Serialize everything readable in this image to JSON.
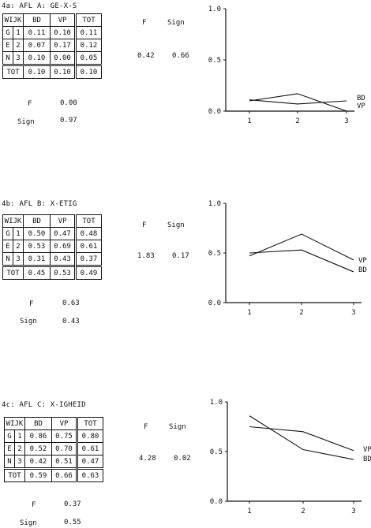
{
  "panels": [
    {
      "title": "4a: AFL A: GE-X-S",
      "table": {
        "corner": "WIJK",
        "col_headers": [
          "BD",
          "VP",
          "TOT"
        ],
        "row_group": [
          "G",
          "E",
          "N"
        ],
        "rows": [
          {
            "id": "1",
            "values": [
              "0.11",
              "0.10",
              "0.11"
            ]
          },
          {
            "id": "2",
            "values": [
              "0.07",
              "0.17",
              "0.12"
            ]
          },
          {
            "id": "3",
            "values": [
              "0.10",
              "0.00",
              "0.05"
            ]
          }
        ],
        "total": {
          "label": "TOT",
          "values": [
            "0.10",
            "0.10",
            "0.10"
          ]
        }
      },
      "f_label": "F",
      "f_value": "0.42",
      "sign_label": "Sign",
      "sign_value": "0.66",
      "bottom_f_label": "F",
      "bottom_f_value": "0.00",
      "bottom_sign_label": "Sign",
      "bottom_sign_value": "0.97"
    },
    {
      "title": "4b: AFL B: X-ETIG",
      "table": {
        "corner": "WIJK",
        "col_headers": [
          "BD",
          "VP",
          "TOT"
        ],
        "row_group": [
          "G",
          "E",
          "N"
        ],
        "rows": [
          {
            "id": "1",
            "values": [
              "0.50",
              "0.47",
              "0.48"
            ]
          },
          {
            "id": "2",
            "values": [
              "0.53",
              "0.69",
              "0.61"
            ]
          },
          {
            "id": "3",
            "values": [
              "0.31",
              "0.43",
              "0.37"
            ]
          }
        ],
        "total": {
          "label": "TOT",
          "values": [
            "0.45",
            "0.53",
            "0.49"
          ]
        }
      },
      "f_label": "F",
      "f_value": "1.83",
      "sign_label": "Sign",
      "sign_value": "0.17",
      "bottom_f_label": "F",
      "bottom_f_value": "0.63",
      "bottom_sign_label": "Sign",
      "bottom_sign_value": "0.43"
    },
    {
      "title": "4c: AFL C: X-IGHEID",
      "table": {
        "corner": "WIJK",
        "col_headers": [
          "BD",
          "VP",
          "TOT"
        ],
        "row_group": [
          "G",
          "E",
          "N"
        ],
        "rows": [
          {
            "id": "1",
            "values": [
              "0.86",
              "0.75",
              "0.80"
            ]
          },
          {
            "id": "2",
            "values": [
              "0.52",
              "0.70",
              "0.61"
            ]
          },
          {
            "id": "3",
            "values": [
              "0.42",
              "0.51",
              "0.47"
            ]
          }
        ],
        "total": {
          "label": "TOT",
          "values": [
            "0.59",
            "0.66",
            "0.63"
          ]
        }
      },
      "f_label": "F",
      "f_value": "4.28",
      "sign_label": "Sign",
      "sign_value": "0.02",
      "bottom_f_label": "F",
      "bottom_f_value": "0.37",
      "bottom_sign_label": "Sign",
      "bottom_sign_value": "0.55"
    }
  ],
  "chart_data": [
    {
      "type": "line",
      "x": [
        1,
        2,
        3
      ],
      "ylim": [
        0.0,
        1.0
      ],
      "yticks": [
        "1.0",
        "0.5",
        "0.0"
      ],
      "xticks": [
        "1",
        "2",
        "3"
      ],
      "grid": false,
      "series": [
        {
          "name": "BD",
          "values": [
            0.11,
            0.07,
            0.1
          ]
        },
        {
          "name": "VP",
          "values": [
            0.1,
            0.17,
            0.0
          ]
        }
      ]
    },
    {
      "type": "line",
      "x": [
        1,
        2,
        3
      ],
      "ylim": [
        0.0,
        1.0
      ],
      "yticks": [
        "1.0",
        "0.5",
        "0.0"
      ],
      "xticks": [
        "1",
        "2",
        "3"
      ],
      "grid": false,
      "series": [
        {
          "name": "BD",
          "values": [
            0.5,
            0.53,
            0.31
          ]
        },
        {
          "name": "VP",
          "values": [
            0.47,
            0.69,
            0.43
          ]
        }
      ]
    },
    {
      "type": "line",
      "x": [
        1,
        2,
        3
      ],
      "ylim": [
        0.0,
        1.0
      ],
      "yticks": [
        "1.0",
        "0.5",
        "0.0"
      ],
      "xticks": [
        "1",
        "2",
        "3"
      ],
      "grid": false,
      "series": [
        {
          "name": "BD",
          "values": [
            0.86,
            0.52,
            0.42
          ]
        },
        {
          "name": "VP",
          "values": [
            0.75,
            0.7,
            0.51
          ]
        }
      ]
    }
  ]
}
